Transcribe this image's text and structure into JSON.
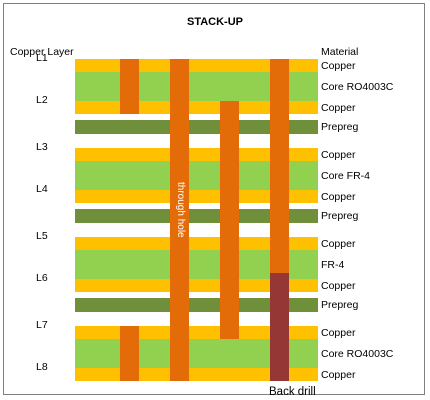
{
  "title": "STACK-UP",
  "headers": {
    "left": "Copper Layer",
    "right": "Material"
  },
  "colors": {
    "copper": "#FFC000",
    "core": "#92D050",
    "prepreg": "#6F8F3A",
    "via": "#E36C09",
    "back_drill": "#953735"
  },
  "copper_layers": [
    "L1",
    "L2",
    "L3",
    "L4",
    "L5",
    "L6",
    "L7",
    "L8"
  ],
  "stack": [
    {
      "type": "copper",
      "material": "Copper",
      "layer": "L1"
    },
    {
      "type": "core",
      "material": "Core RO4003C"
    },
    {
      "type": "copper",
      "material": "Copper",
      "layer": "L2"
    },
    {
      "type": "prepreg",
      "material": "Prepreg"
    },
    {
      "type": "copper",
      "material": "Copper",
      "layer": "L3"
    },
    {
      "type": "core",
      "material": "Core FR-4"
    },
    {
      "type": "copper",
      "material": "Copper",
      "layer": "L4"
    },
    {
      "type": "prepreg",
      "material": "Prepreg"
    },
    {
      "type": "copper",
      "material": "Copper",
      "layer": "L5"
    },
    {
      "type": "core",
      "material": "FR-4"
    },
    {
      "type": "copper",
      "material": "Copper",
      "layer": "L6"
    },
    {
      "type": "prepreg",
      "material": "Prepreg"
    },
    {
      "type": "copper",
      "material": "Copper",
      "layer": "L7"
    },
    {
      "type": "core",
      "material": "Core RO4003C"
    },
    {
      "type": "copper",
      "material": "Copper",
      "layer": "L8"
    }
  ],
  "vias": [
    {
      "kind": "blind",
      "from": "L1",
      "to": "L2"
    },
    {
      "kind": "through",
      "from": "L1",
      "to": "L8",
      "label": "through hole"
    },
    {
      "kind": "buried",
      "from": "L2",
      "to": "L7"
    },
    {
      "kind": "back-drilled",
      "from": "L1",
      "to": "L8",
      "drilled_from": "L6",
      "label": "Back drill"
    },
    {
      "kind": "blind",
      "from": "L7",
      "to": "L8"
    }
  ]
}
